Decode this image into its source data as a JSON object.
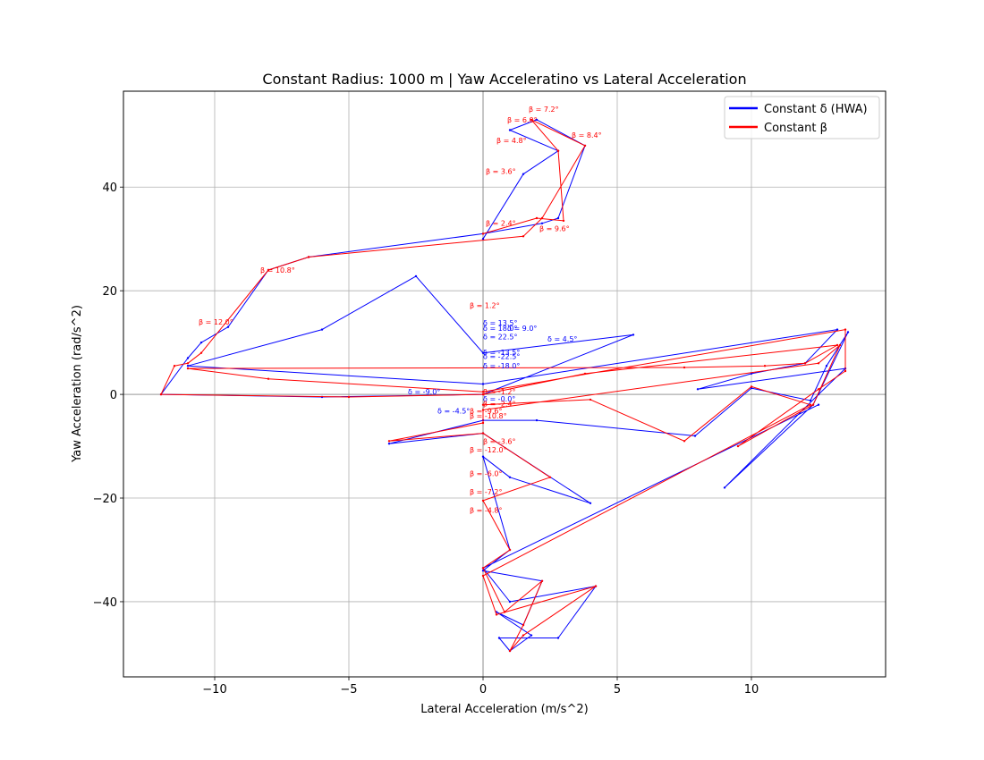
{
  "chart_data": {
    "type": "line",
    "title": "Constant Radius: 1000 m | Yaw Acceleratino vs Lateral Acceleration",
    "xlabel": "Lateral Acceleration (m/s^2)",
    "ylabel": "Yaw Acceleration (rad/s^2)",
    "xlim": [
      -13.4,
      15.0
    ],
    "ylim": [
      -54.5,
      58.5
    ],
    "xticks": [
      -10,
      -5,
      0,
      5,
      10
    ],
    "yticks": [
      -40,
      -20,
      0,
      20,
      40
    ],
    "xtick_labels": [
      "−10",
      "−5",
      "0",
      "5",
      "10"
    ],
    "ytick_labels": [
      "−40",
      "−20",
      "0",
      "20",
      "40"
    ],
    "grid": true,
    "legend_position": "top-right",
    "colors": {
      "delta": "#0000ff",
      "beta": "#ff0000",
      "grid": "#b0b0b0"
    },
    "series": [
      {
        "name": "Constant δ (HWA)",
        "color": "#0000ff",
        "points": [
          [
            0,
            30
          ],
          [
            1.5,
            42.5
          ],
          [
            2.8,
            47
          ],
          [
            1.0,
            51
          ],
          [
            2.0,
            53
          ],
          [
            3.8,
            48
          ],
          [
            2.8,
            34
          ],
          [
            2.2,
            33
          ],
          [
            0,
            31
          ],
          [
            -6.5,
            26.5
          ],
          [
            -8.0,
            24
          ],
          [
            -9.5,
            13
          ],
          [
            -10.5,
            10
          ],
          [
            -11,
            7
          ],
          [
            -12,
            0
          ],
          [
            -6,
            -0.5
          ],
          [
            0,
            0
          ],
          [
            5.6,
            11.5
          ],
          [
            0,
            8
          ],
          [
            -2.5,
            22.8
          ],
          [
            -6,
            12.5
          ],
          [
            -11,
            5.5
          ],
          [
            0,
            2
          ],
          [
            13.2,
            12.5
          ],
          [
            12,
            6
          ],
          [
            10,
            4
          ],
          [
            8,
            1
          ],
          [
            13.5,
            5
          ],
          [
            12.5,
            0
          ],
          [
            9,
            -18
          ],
          [
            12.3,
            -2
          ],
          [
            13.6,
            12
          ],
          [
            12.8,
            5.5
          ],
          [
            12.2,
            -1.2
          ],
          [
            10,
            1.2
          ],
          [
            7.9,
            -8
          ],
          [
            2,
            -5
          ],
          [
            0,
            -5
          ],
          [
            -3.5,
            -9.5
          ],
          [
            0,
            -7.5
          ],
          [
            4,
            -21
          ],
          [
            1,
            -16
          ],
          [
            0,
            -12
          ],
          [
            1,
            -30
          ],
          [
            0,
            -34
          ],
          [
            2.2,
            -36
          ],
          [
            1.5,
            -44.5
          ],
          [
            0.5,
            -42
          ],
          [
            1.8,
            -46.5
          ],
          [
            1,
            -49.5
          ],
          [
            0.6,
            -47
          ],
          [
            2.8,
            -47
          ],
          [
            4.2,
            -37
          ],
          [
            1,
            -40
          ],
          [
            0,
            -33.5
          ],
          [
            12.5,
            -2
          ]
        ]
      },
      {
        "name": "Constant β",
        "color": "#ff0000",
        "points": [
          [
            0,
            31
          ],
          [
            2,
            34
          ],
          [
            3,
            33.5
          ],
          [
            2.8,
            47
          ],
          [
            1.8,
            53
          ],
          [
            3.8,
            48
          ],
          [
            2.2,
            34
          ],
          [
            1.5,
            30.5
          ],
          [
            -6.5,
            26.5
          ],
          [
            -8,
            24
          ],
          [
            -10.5,
            8
          ],
          [
            -11,
            6
          ],
          [
            -11.5,
            5.5
          ],
          [
            -12,
            0
          ],
          [
            -5,
            -0.5
          ],
          [
            0,
            0
          ],
          [
            3.8,
            4
          ],
          [
            13.2,
            9.5
          ],
          [
            12,
            6
          ],
          [
            10.5,
            5.5
          ],
          [
            7.5,
            5.2
          ],
          [
            -11,
            5
          ],
          [
            -8,
            3
          ],
          [
            0,
            0.5
          ],
          [
            13.5,
            12.5
          ],
          [
            13.5,
            4.5
          ],
          [
            12.5,
            1
          ],
          [
            9.5,
            -10
          ],
          [
            12.3,
            -2
          ],
          [
            13.3,
            9.5
          ],
          [
            12.5,
            6
          ],
          [
            0,
            -3
          ],
          [
            0,
            -5.5
          ],
          [
            -3.5,
            -9
          ],
          [
            0,
            -7.5
          ],
          [
            2.5,
            -16
          ],
          [
            0,
            -20.5
          ],
          [
            1,
            -30
          ],
          [
            0,
            -33.5
          ],
          [
            0.8,
            -42
          ],
          [
            2.2,
            -36
          ],
          [
            1.5,
            -44.5
          ],
          [
            1,
            -49.5
          ],
          [
            1.5,
            -46.5
          ],
          [
            4.2,
            -37
          ],
          [
            0.5,
            -42.5
          ],
          [
            0,
            -35
          ],
          [
            12.2,
            -2
          ],
          [
            10,
            1.5
          ],
          [
            7.5,
            -9
          ],
          [
            4,
            -1
          ],
          [
            0,
            -2
          ]
        ]
      }
    ],
    "annotations": [
      {
        "text": "β = 7.2°",
        "x": 1.7,
        "y": 54.5,
        "color": "#ff0000"
      },
      {
        "text": "β = 6.0°",
        "x": 0.9,
        "y": 52.5,
        "color": "#ff0000"
      },
      {
        "text": "β = 8.4°",
        "x": 3.3,
        "y": 49.5,
        "color": "#ff0000"
      },
      {
        "text": "β = 4.8°",
        "x": 0.5,
        "y": 48.5,
        "color": "#ff0000"
      },
      {
        "text": "β = 3.6°",
        "x": 0.1,
        "y": 42.5,
        "color": "#ff0000"
      },
      {
        "text": "β = 9.6°",
        "x": 2.1,
        "y": 31.5,
        "color": "#ff0000"
      },
      {
        "text": "β = 2.4°",
        "x": 0.1,
        "y": 32.5,
        "color": "#ff0000"
      },
      {
        "text": "β = 10.8°",
        "x": -8.3,
        "y": 23.5,
        "color": "#ff0000"
      },
      {
        "text": "β = 12.0°",
        "x": -10.6,
        "y": 13.5,
        "color": "#ff0000"
      },
      {
        "text": "β = 1.2°",
        "x": -0.5,
        "y": 16.7,
        "color": "#ff0000"
      },
      {
        "text": "δ = 13.5°",
        "x": 0.0,
        "y": 13.3,
        "color": "#0000ff"
      },
      {
        "text": "δ = 18.0°",
        "x": 0.0,
        "y": 12.3,
        "color": "#0000ff"
      },
      {
        "text": "δ = 9.0°",
        "x": 0.9,
        "y": 12.3,
        "color": "#0000ff"
      },
      {
        "text": "δ = 22.5°",
        "x": 0.0,
        "y": 10.6,
        "color": "#0000ff"
      },
      {
        "text": "δ = 4.5°",
        "x": 2.4,
        "y": 10.2,
        "color": "#0000ff"
      },
      {
        "text": "δ = -13.5°",
        "x": 0.0,
        "y": 7.6,
        "color": "#0000ff"
      },
      {
        "text": "δ = -22.5°",
        "x": 0.0,
        "y": 6.8,
        "color": "#0000ff"
      },
      {
        "text": "δ = -18.0°",
        "x": 0.0,
        "y": 5.0,
        "color": "#0000ff"
      },
      {
        "text": "δ = -9.0°",
        "x": -2.8,
        "y": 0.0,
        "color": "#0000ff"
      },
      {
        "text": "β = -1.2°",
        "x": 0.0,
        "y": 0.0,
        "color": "#ff0000"
      },
      {
        "text": "δ = -0.0°",
        "x": 0.0,
        "y": -1.4,
        "color": "#0000ff"
      },
      {
        "text": "β = -2.4°",
        "x": 0.0,
        "y": -2.3,
        "color": "#ff0000"
      },
      {
        "text": "δ = -4.5°",
        "x": -1.7,
        "y": -3.7,
        "color": "#0000ff"
      },
      {
        "text": "β = -9.6°",
        "x": -0.5,
        "y": -3.7,
        "color": "#ff0000"
      },
      {
        "text": "β = -10.8°",
        "x": -0.5,
        "y": -4.6,
        "color": "#ff0000"
      },
      {
        "text": "β = -3.6°",
        "x": 0.0,
        "y": -9.6,
        "color": "#ff0000"
      },
      {
        "text": "β = -12.0°",
        "x": -0.5,
        "y": -11.2,
        "color": "#ff0000"
      },
      {
        "text": "β = -6.0°",
        "x": -0.5,
        "y": -15.8,
        "color": "#ff0000"
      },
      {
        "text": "β = -7.2°",
        "x": -0.5,
        "y": -19.3,
        "color": "#ff0000"
      },
      {
        "text": "β = -4.8°",
        "x": -0.5,
        "y": -22.8,
        "color": "#ff0000"
      }
    ],
    "legend": [
      {
        "label": "Constant δ (HWA)",
        "color": "#0000ff"
      },
      {
        "label": "Constant β",
        "color": "#ff0000"
      }
    ]
  }
}
